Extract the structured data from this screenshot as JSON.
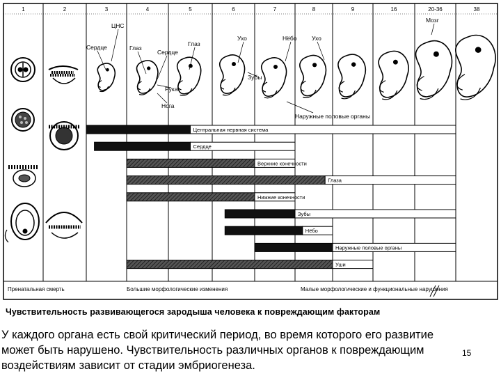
{
  "weeks": [
    "1",
    "2",
    "3",
    "4",
    "5",
    "6",
    "7",
    "8",
    "9",
    "16",
    "20-36",
    "38"
  ],
  "stage_labels": {
    "cns": "ЦНС",
    "heart": "Сердце",
    "eye_left": "Глаз",
    "heart2": "Сердце",
    "eye_right": "Глаз",
    "arm": "Рука",
    "leg": "Нога",
    "ear": "Ухо",
    "palate": "Нёбо",
    "ear2": "Ухо",
    "teeth": "Зубы",
    "genitals": "Наружные половые органы",
    "brain": "Мозг"
  },
  "organs": [
    {
      "name": "Центральная нервная система",
      "start": 3,
      "crit_end": 5.5,
      "end": 12
    },
    {
      "name": "Сердце",
      "start": 3.2,
      "crit_end": 5.5,
      "end": 8
    },
    {
      "name": "Верхние конечности",
      "start": 4,
      "crit_end": 7,
      "end": 8
    },
    {
      "name": "Глаза",
      "start": 4,
      "crit_end": 8.8,
      "end": 12
    },
    {
      "name": "Нижние конечности",
      "start": 4,
      "crit_end": 7,
      "end": 8
    },
    {
      "name": "Зубы",
      "start": 6.3,
      "crit_end": 8,
      "end": 12
    },
    {
      "name": "Нёбо",
      "start": 6.3,
      "crit_end": 8.2,
      "end": 9
    },
    {
      "name": "Наружные половые органы",
      "start": 7,
      "crit_end": 9,
      "end": 12
    },
    {
      "name": "Уши",
      "start": 4,
      "crit_end": 9,
      "end": 10
    }
  ],
  "bottom": {
    "prenatal": "Пренатальная смерть",
    "major": "Большие морфологические изменения",
    "minor": "Малые морфологические и функциональные нарушения"
  },
  "caption": "Чувствительность развивающегося зародыша человека к повреждающим факторам",
  "paragraph": "У каждого органа есть свой критический период, во время которого его развитие может быть нарушено. Чувствительность различных органов к повреждающим воздействиям зависит от стадии эмбриогенеза.",
  "page_number": "15"
}
